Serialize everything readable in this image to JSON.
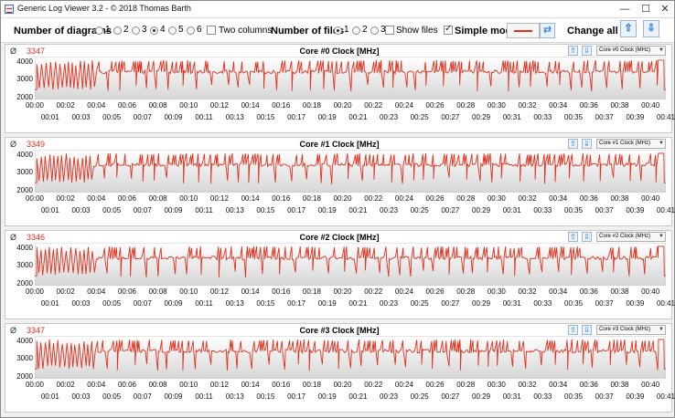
{
  "window": {
    "title": "Generic Log Viewer 3.2 - © 2018 Thomas Barth",
    "minimize_glyph": "—",
    "maximize_glyph": "☐",
    "close_glyph": "✕"
  },
  "toolbar": {
    "diagrams_label": "Number of diagrams",
    "diagram_options": [
      "1",
      "2",
      "3",
      "4",
      "5",
      "6"
    ],
    "diagrams_selected": "4",
    "two_columns_label": "Two columns",
    "two_columns_checked": false,
    "files_label": "Number of files",
    "file_options": [
      "1",
      "2",
      "3"
    ],
    "files_selected": "1",
    "show_files_label": "Show files",
    "show_files_checked": false,
    "simple_mode_label": "Simple mode",
    "simple_mode_checked": true,
    "line_color": "#e0301e",
    "refresh_icon": "refresh-icon",
    "change_all_label": "Change all",
    "up_glyph": "⇧",
    "down_glyph": "⇩"
  },
  "panels": [
    {
      "avg_symbol": "Ø",
      "avg_value": "3347",
      "title": "Core #0 Clock [MHz]",
      "select_value": "Core #0 Clock (MHz)"
    },
    {
      "avg_symbol": "Ø",
      "avg_value": "3349",
      "title": "Core #1 Clock [MHz]",
      "select_value": "Core #1 Clock (MHz)"
    },
    {
      "avg_symbol": "Ø",
      "avg_value": "3346",
      "title": "Core #2 Clock [MHz]",
      "select_value": "Core #2 Clock (MHz)"
    },
    {
      "avg_symbol": "Ø",
      "avg_value": "3347",
      "title": "Core #3 Clock [MHz]",
      "select_value": "Core #3 Clock (MHz)"
    }
  ],
  "panel_up_glyph": "⇧",
  "panel_down_glyph": "⇩",
  "chart_data": {
    "type": "line",
    "series_color": "#e0301e",
    "y_ticks": [
      "4000",
      "3000",
      "2000"
    ],
    "ylim": [
      1900,
      4300
    ],
    "x_ticks_top": [
      "00:00",
      "00:02",
      "00:04",
      "00:06",
      "00:08",
      "00:10",
      "00:12",
      "00:14",
      "00:16",
      "00:18",
      "00:20",
      "00:22",
      "00:24",
      "00:26",
      "00:28",
      "00:30",
      "00:32",
      "00:34",
      "00:36",
      "00:38",
      "00:40"
    ],
    "x_ticks_bottom": [
      "00:01",
      "00:03",
      "00:05",
      "00:07",
      "00:09",
      "00:11",
      "00:13",
      "00:15",
      "00:17",
      "00:19",
      "00:21",
      "00:23",
      "00:25",
      "00:27",
      "00:29",
      "00:31",
      "00:33",
      "00:35",
      "00:37",
      "00:39",
      "00:41"
    ],
    "x_range_seconds": [
      0,
      2470
    ],
    "baseline_mhz": 3450,
    "low_mhz": 2450,
    "peak_mhz": 4000,
    "end_level_mhz": 4100
  }
}
